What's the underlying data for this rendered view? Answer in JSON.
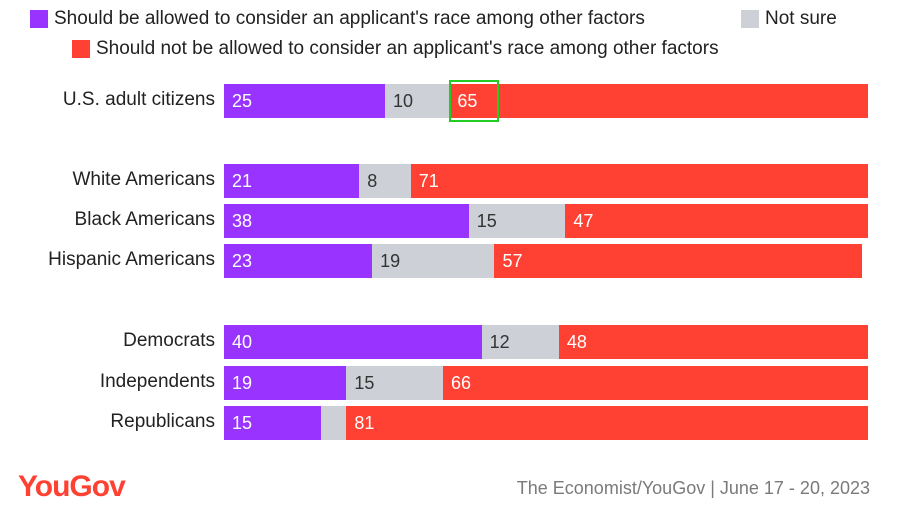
{
  "chart_data": {
    "type": "bar",
    "orientation": "horizontal",
    "stacked": true,
    "categories": [
      "U.S. adult citizens",
      "White Americans",
      "Black Americans",
      "Hispanic Americans",
      "Democrats",
      "Independents",
      "Republicans"
    ],
    "series": [
      {
        "name": "Should be allowed to consider an applicant's race among other factors",
        "color": "#9933ff",
        "values": [
          25,
          21,
          38,
          23,
          40,
          19,
          15
        ]
      },
      {
        "name": "Not sure",
        "color": "#cdd0d6",
        "values": [
          10,
          8,
          15,
          19,
          12,
          15,
          4
        ]
      },
      {
        "name": "Should not be allowed to consider an applicant's race among other factors",
        "color": "#ff4133",
        "values": [
          65,
          71,
          47,
          57,
          48,
          66,
          81
        ]
      }
    ],
    "value_labels": [
      [
        "25",
        "21",
        "38",
        "23",
        "40",
        "19",
        "15"
      ],
      [
        "10",
        "8",
        "15",
        "19",
        "12",
        "15",
        ""
      ],
      [
        "65",
        "71",
        "47",
        "57",
        "48",
        "66",
        "81"
      ]
    ],
    "xlim": [
      0,
      100
    ],
    "legend": "top",
    "grid": false,
    "highlighted": {
      "category": "U.S. adult citizens",
      "series": 2
    }
  },
  "brand": "YouGov",
  "brand_color": "#ff4133",
  "source": "The Economist/YouGov | June 17 - 20, 2023"
}
